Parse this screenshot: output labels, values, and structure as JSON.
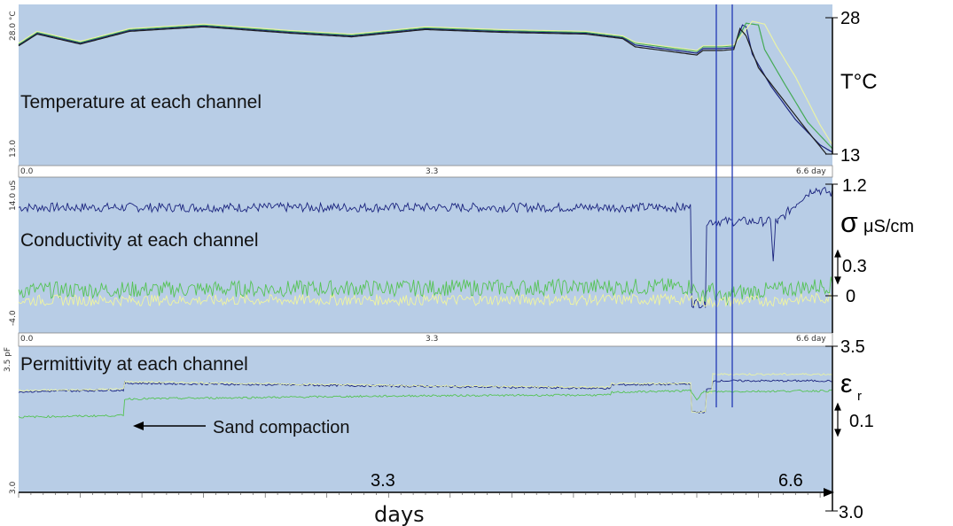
{
  "chart_data": {
    "type": "line",
    "x_unit": "day",
    "xlim": [
      0,
      6.6
    ],
    "panels": [
      {
        "id": "temperature",
        "title": "Temperature at each channel",
        "left_ylabel_top": "28.0 °C",
        "left_ylabel_bottom": "13.0",
        "x_ticks": [
          "0.0",
          "3.3",
          "6.6 day"
        ],
        "right_top": "28",
        "right_bottom": "13",
        "right_unit": "T°C",
        "ylim": [
          13,
          28
        ],
        "series": [
          {
            "color": "#1a237e",
            "x": [
              0,
              0.15,
              0.5,
              0.9,
              1.5,
              2.2,
              2.7,
              3.3,
              3.9,
              4.6,
              4.9,
              5.0,
              5.5,
              5.55,
              5.7,
              5.8,
              5.87,
              5.9,
              5.95,
              6.1,
              6.3,
              6.5,
              6.6
            ],
            "y": [
              25.0,
              26.3,
              25.2,
              26.6,
              27.1,
              26.4,
              26.0,
              26.8,
              26.5,
              26.3,
              25.8,
              25.0,
              24.1,
              24.6,
              24.6,
              24.7,
              27.2,
              27.0,
              24.0,
              20.5,
              16.8,
              14.0,
              13.2
            ]
          },
          {
            "color": "#44aa55",
            "x": [
              0,
              0.15,
              0.5,
              0.9,
              1.5,
              2.2,
              2.7,
              3.3,
              3.9,
              4.6,
              4.9,
              5.0,
              5.5,
              5.55,
              5.7,
              5.8,
              5.9,
              6.0,
              6.05,
              6.2,
              6.4,
              6.6
            ],
            "y": [
              25.1,
              26.4,
              25.3,
              26.7,
              27.2,
              26.5,
              26.1,
              26.9,
              26.6,
              26.4,
              25.9,
              25.2,
              24.3,
              24.8,
              24.8,
              24.9,
              27.4,
              27.2,
              24.5,
              21.0,
              16.5,
              13.6
            ]
          },
          {
            "color": "#e8f2a8",
            "x": [
              0,
              0.15,
              0.5,
              0.9,
              1.5,
              2.2,
              2.7,
              3.3,
              3.9,
              4.6,
              4.9,
              5.0,
              5.5,
              5.55,
              5.7,
              5.8,
              5.95,
              6.05,
              6.15,
              6.3,
              6.5,
              6.6
            ],
            "y": [
              25.2,
              26.5,
              25.4,
              26.8,
              27.3,
              26.6,
              26.2,
              27.0,
              26.7,
              26.5,
              26.0,
              25.3,
              24.4,
              24.9,
              24.9,
              25.0,
              27.6,
              27.3,
              24.8,
              21.5,
              16.2,
              14.0
            ]
          },
          {
            "color": "#1e1e1e",
            "x": [
              0,
              0.15,
              0.5,
              0.9,
              1.5,
              2.2,
              2.7,
              3.3,
              3.9,
              4.6,
              4.9,
              5.0,
              5.5,
              5.55,
              5.7,
              5.8,
              5.85,
              5.9,
              6.0,
              6.2,
              6.4,
              6.55
            ],
            "y": [
              24.9,
              26.2,
              25.1,
              26.5,
              27.0,
              26.3,
              25.9,
              26.7,
              26.4,
              26.2,
              25.7,
              24.8,
              23.9,
              24.4,
              24.4,
              24.5,
              26.8,
              26.0,
              22.5,
              19.0,
              15.5,
              13.0
            ]
          }
        ]
      },
      {
        "id": "conductivity",
        "title": "Conductivity at each channel",
        "left_ylabel_top": "14.0 uS",
        "left_ylabel_bottom": "-4.0",
        "x_ticks": [
          "0.0",
          "3.3",
          "6.6 day"
        ],
        "right_top": "1.2",
        "right_unit": "μS/cm",
        "right_symbol": "σ",
        "right_scale": "0.3",
        "right_zero": "0",
        "series": [
          {
            "name": "",
            "color": "#1a237e",
            "x": [
              0,
              5.45,
              5.46,
              5.57,
              5.58,
              6.1,
              6.12,
              6.14,
              6.16,
              6.2,
              6.35,
              6.45,
              6.6
            ],
            "y": [
              0.95,
              0.95,
              -0.08,
              -0.08,
              0.8,
              0.8,
              0.35,
              0.8,
              0.8,
              0.85,
              1.05,
              1.15,
              1.1
            ]
          },
          {
            "color": "#55c355",
            "x": [
              0,
              5.45,
              5.55,
              5.6,
              5.7,
              5.8,
              6.0,
              6.3,
              6.6
            ],
            "y": [
              0.06,
              0.1,
              -0.02,
              0.1,
              -0.05,
              0.03,
              0.05,
              0.08,
              0.12
            ]
          },
          {
            "color": "#f0f5a0",
            "x": [
              0,
              5.45,
              5.6,
              5.8,
              6.2,
              6.6
            ],
            "y": [
              -0.05,
              -0.04,
              -0.07,
              -0.06,
              -0.05,
              -0.02
            ]
          }
        ]
      },
      {
        "id": "permittivity",
        "title": "Permittivity at each channel",
        "left_ylabel_top": "3.5 pF",
        "left_ylabel_bottom": "3.0",
        "right_top": "3.5",
        "right_bottom": "3.0",
        "right_symbol": "ε",
        "right_subscript": "r",
        "right_scale": "0.1",
        "annotation": "Sand compaction",
        "x_ticks": [
          "3.3",
          "6.6"
        ],
        "ylim": [
          3.0,
          3.5
        ],
        "series": [
          {
            "color": "#1a237e",
            "x": [
              0,
              0.85,
              0.86,
              3.3,
              4.8,
              4.81,
              5.45,
              5.46,
              5.57,
              5.58,
              5.62,
              5.63,
              6.6
            ],
            "y": [
              3.362,
              3.367,
              3.388,
              3.378,
              3.372,
              3.383,
              3.385,
              3.3,
              3.3,
              3.37,
              3.37,
              3.395,
              3.395
            ]
          },
          {
            "color": "#e8f2a8",
            "x": [
              0,
              0.85,
              0.86,
              3.3,
              4.8,
              4.81,
              5.45,
              5.46,
              5.57,
              5.58,
              5.62,
              5.63,
              6.6
            ],
            "y": [
              3.365,
              3.37,
              3.392,
              3.38,
              3.375,
              3.386,
              3.388,
              3.3,
              3.3,
              3.36,
              3.36,
              3.415,
              3.415
            ]
          },
          {
            "color": "#55c355",
            "x": [
              0,
              0.85,
              0.86,
              3.3,
              4.8,
              4.81,
              5.45,
              5.5,
              5.55,
              5.6,
              6.6
            ],
            "y": [
              3.285,
              3.29,
              3.34,
              3.35,
              3.352,
              3.36,
              3.365,
              3.34,
              3.36,
              3.362,
              3.365
            ]
          }
        ]
      }
    ],
    "shared_x_ticks_bottom": [
      "3.3",
      "6.6"
    ],
    "xlabel": "days"
  }
}
